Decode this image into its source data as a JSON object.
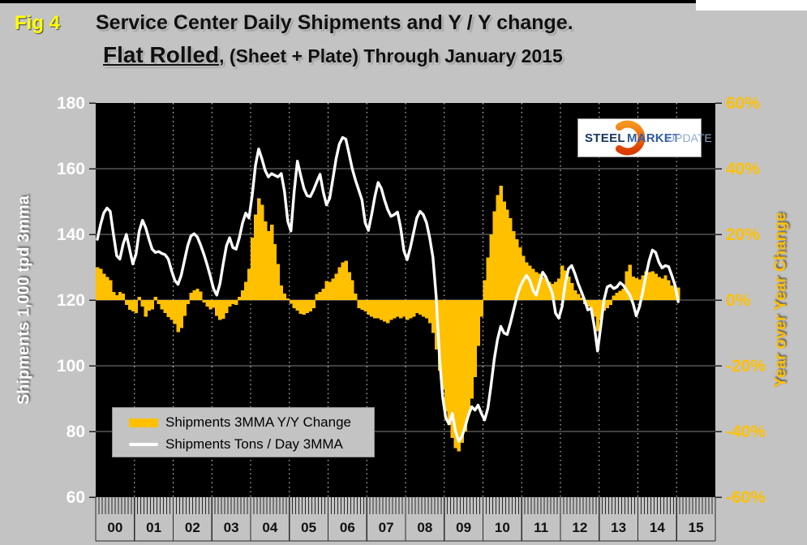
{
  "header": {
    "fig_label": "Fig 4",
    "title_line1": "Service Center Daily Shipments and Y / Y change.",
    "title_line2_emphasis": "Flat Rolled",
    "title_line2_rest": ", (Sheet + Plate) Through January 2015"
  },
  "logo": {
    "word1": "STEEL",
    "word2": "MARKET",
    "word3": "UPDATE"
  },
  "legend": {
    "items": [
      {
        "label": "Shipments 3MMA Y/Y Change",
        "swatch": "bar",
        "color": "#FFC000"
      },
      {
        "label": "Shipments Tons / Day 3MMA",
        "swatch": "line",
        "color": "#FFFFFF"
      }
    ]
  },
  "chart_data": {
    "type": "bar+line combo",
    "x_unit": "monthly, Jan 2000 through Jan 2015",
    "year_labels": [
      "00",
      "01",
      "02",
      "03",
      "04",
      "05",
      "06",
      "07",
      "08",
      "09",
      "10",
      "11",
      "12",
      "13",
      "14",
      "15"
    ],
    "plot": {
      "bg": "#000000",
      "hgrid_color": "#7F7F7F",
      "vgrid_color": "#E8E8E8"
    },
    "left_axis": {
      "label": "Shipments 1,000 tpd 3mma",
      "color": "#FFFFFF",
      "range": [
        60,
        180
      ],
      "ticks": [
        180,
        160,
        140,
        120,
        100,
        80,
        60
      ]
    },
    "right_axis": {
      "label": "Year over Year Change",
      "color": "#FFC000",
      "range": [
        -60,
        60
      ],
      "ticks": [
        60,
        40,
        20,
        0,
        -20,
        -40,
        -60
      ],
      "tick_labels": [
        "60%",
        "40%",
        "20%",
        "0%",
        "-20%",
        "-40%",
        "-60%"
      ]
    },
    "series": [
      {
        "name": "Shipments 3MMA Y/Y Change",
        "type": "bar",
        "axis": "right",
        "color": "#FFC000",
        "values": [
          10,
          9.5,
          8,
          7,
          6,
          2.5,
          1.5,
          2.5,
          2,
          -1.5,
          -3,
          -3.5,
          -4,
          1,
          -2,
          -5,
          -3.2,
          -2.8,
          1,
          -1.2,
          -2.8,
          -4,
          -5.2,
          -6,
          -7.3,
          -9.8,
          -8.5,
          -4.8,
          -1.2,
          2.2,
          3,
          3.4,
          2.6,
          -0.8,
          -2,
          -2.8,
          -2.4,
          -4.8,
          -6.1,
          -5.7,
          -4,
          -2,
          -1.2,
          -1.5,
          1,
          3,
          5.5,
          9.5,
          19,
          26,
          31,
          29,
          24,
          21,
          23,
          17,
          11,
          4.5,
          2,
          0.5,
          -1.1,
          -2.5,
          -3.2,
          -4.2,
          -4.5,
          -4,
          -3.5,
          -2.5,
          1.8,
          2.5,
          3.5,
          5.8,
          5.5,
          6.5,
          8,
          10,
          11.5,
          12,
          8.5,
          6,
          2,
          -2.5,
          -3,
          -3.5,
          -4.5,
          -5,
          -5.5,
          -5.5,
          -6,
          -6.5,
          -7,
          -6,
          -5.5,
          -5,
          -5.5,
          -5,
          -6,
          -5.5,
          -5,
          -4,
          -4.5,
          -5,
          -5.5,
          -7,
          -10,
          -15,
          -21.5,
          -27,
          -34,
          -38,
          -42,
          -45,
          -46,
          -43.5,
          -40,
          -35,
          -30,
          -23.5,
          -14,
          -5,
          6,
          13,
          20,
          27,
          32,
          34.8,
          30,
          27.5,
          25,
          21,
          18.5,
          16,
          13.5,
          11.5,
          10.5,
          9.5,
          8.5,
          8,
          7,
          6.5,
          5.5,
          5,
          5.5,
          6.5,
          10.5,
          9,
          7.2,
          5.2,
          3,
          1.8,
          0.8,
          -1.2,
          -2,
          -3,
          -5,
          -9.5,
          -6.2,
          -3.2,
          -2.5,
          -1.5,
          1.4,
          2.2,
          2.8,
          3.4,
          8.8,
          10.8,
          7.1,
          6.7,
          6.3,
          7.5,
          8.8,
          8.5,
          8.8,
          8,
          7,
          6.5,
          7.5,
          6,
          4.5,
          4,
          3.8
        ]
      },
      {
        "name": "Shipments Tons / Day 3MMA",
        "type": "line",
        "axis": "left",
        "color": "#FFFFFF",
        "values": [
          138.5,
          143,
          146.5,
          148,
          147,
          140,
          133.5,
          132.5,
          137,
          140,
          135.5,
          131,
          134,
          141,
          144.3,
          142,
          138.5,
          135.5,
          134.5,
          134.8,
          134.2,
          133.8,
          132.5,
          129,
          126,
          124.8,
          127.5,
          132,
          136.5,
          139.5,
          140.2,
          139.2,
          136.8,
          134,
          130.8,
          127.3,
          123.5,
          121.5,
          125,
          131,
          136.5,
          139,
          136,
          135.5,
          139,
          143.5,
          146.5,
          145,
          152,
          161,
          166,
          163,
          159.5,
          157.5,
          158.5,
          158,
          157.5,
          158.5,
          153,
          144,
          141,
          153,
          162.3,
          158,
          154,
          151.8,
          151.5,
          153.5,
          156,
          158.3,
          153,
          149,
          151,
          157,
          163,
          167.5,
          169.5,
          169,
          164.5,
          160,
          156.5,
          153.5,
          150.5,
          143.5,
          141.2,
          146,
          151.5,
          155.8,
          154,
          150.5,
          147.5,
          145.5,
          146,
          146.8,
          142,
          135,
          132.3,
          136,
          140.5,
          145,
          147,
          146,
          143.5,
          139,
          133,
          121,
          103,
          90.5,
          84,
          82.3,
          85.5,
          80,
          77,
          78.5,
          81.5,
          85,
          87.5,
          86.5,
          88,
          85.5,
          83.5,
          87,
          94,
          102,
          108,
          112,
          110,
          109.5,
          113,
          117,
          121,
          124,
          126,
          127.5,
          126,
          123,
          121.5,
          125,
          128.5,
          127,
          124.5,
          122,
          116,
          114.5,
          118,
          125,
          129.5,
          130.5,
          128,
          125,
          122.5,
          120,
          117,
          117.5,
          112,
          104.5,
          112,
          120,
          124,
          124.5,
          123.5,
          124,
          125.3,
          124.5,
          123,
          121.5,
          119,
          115.2,
          118,
          122.5,
          127.5,
          132,
          135.2,
          134.5,
          131.5,
          129.8,
          130.5,
          130.2,
          127.5,
          124.5,
          119.5
        ]
      }
    ]
  }
}
